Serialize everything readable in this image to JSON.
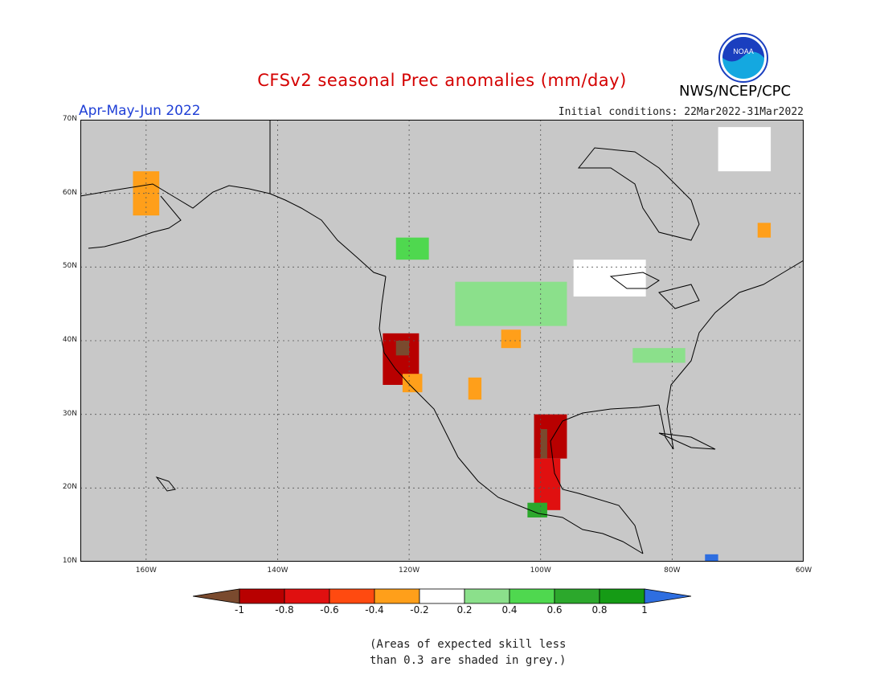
{
  "title": "CFSv2 seasonal Prec anomalies (mm/day)",
  "agency": "NWS/NCEP/CPC",
  "logo_text": "NOAA",
  "season": "Apr-May-Jun 2022",
  "initial_conditions": "Initial conditions: 22Mar2022-31Mar2022",
  "skill_note": [
    "(Areas of expected skill less",
    "than 0.3 are shaded in grey.)"
  ],
  "map": {
    "lon_range": [
      -170,
      -60
    ],
    "lat_range": [
      10,
      70
    ],
    "lat_labels": [
      "10N",
      "20N",
      "30N",
      "40N",
      "50N",
      "60N",
      "70N"
    ],
    "lon_labels": [
      "160W",
      "140W",
      "120W",
      "100W",
      "80W",
      "60W"
    ],
    "background_color": "#c8c8c8",
    "gridlines": "dotted"
  },
  "colorbar": {
    "labels": [
      "-1",
      "-0.8",
      "-0.6",
      "-0.4",
      "-0.2",
      "0.2",
      "0.4",
      "0.6",
      "0.8",
      "1"
    ],
    "colors": [
      "#7a4a2e",
      "#b80000",
      "#e01010",
      "#ff4a10",
      "#ff9f1a",
      "#ffffff",
      "#8be08b",
      "#4fd84f",
      "#2ca82c",
      "#159b15",
      "#2e6ee0"
    ]
  },
  "anomaly_regions": [
    {
      "name": "California coast",
      "lon": [
        -124,
        -118.5
      ],
      "lat": [
        34,
        41
      ],
      "value": -0.9
    },
    {
      "name": "Northern California core",
      "lon": [
        -122,
        -120
      ],
      "lat": [
        38,
        40
      ],
      "value": -1.0
    },
    {
      "name": "Southern California",
      "lon": [
        -121,
        -118
      ],
      "lat": [
        33,
        35.5
      ],
      "value": -0.4
    },
    {
      "name": "Arizona",
      "lon": [
        -111,
        -109
      ],
      "lat": [
        32,
        35
      ],
      "value": -0.4
    },
    {
      "name": "Colorado",
      "lon": [
        -106,
        -103
      ],
      "lat": [
        39,
        41.5
      ],
      "value": -0.4
    },
    {
      "name": "Texas / Gulf coast",
      "lon": [
        -101,
        -96
      ],
      "lat": [
        24,
        30
      ],
      "value": -0.9
    },
    {
      "name": "Texas core",
      "lon": [
        -100,
        -99
      ],
      "lat": [
        24,
        28
      ],
      "value": -1.0
    },
    {
      "name": "Eastern Mexico",
      "lon": [
        -101,
        -97
      ],
      "lat": [
        17,
        24
      ],
      "value": -0.8
    },
    {
      "name": "Southern Mexico",
      "lon": [
        -102,
        -99
      ],
      "lat": [
        16,
        18
      ],
      "value": 0.7
    },
    {
      "name": "Alaska Peninsula",
      "lon": [
        -162,
        -158
      ],
      "lat": [
        57,
        63
      ],
      "value": -0.4
    },
    {
      "name": "Labrador",
      "lon": [
        -67,
        -65
      ],
      "lat": [
        54,
        56
      ],
      "value": -0.4
    },
    {
      "name": "British Columbia",
      "lon": [
        -122,
        -117
      ],
      "lat": [
        51,
        54
      ],
      "value": 0.4
    },
    {
      "name": "Northern Plains",
      "lon": [
        -113,
        -96
      ],
      "lat": [
        42,
        48
      ],
      "value": 0.3
    },
    {
      "name": "Ohio Valley",
      "lon": [
        -86,
        -78
      ],
      "lat": [
        37,
        39
      ],
      "value": 0.3
    },
    {
      "name": "Great Lakes / Quebec",
      "lon": [
        -95,
        -84
      ],
      "lat": [
        46,
        51
      ],
      "value": 0.1
    },
    {
      "name": "Greenland",
      "lon": [
        -73,
        -65
      ],
      "lat": [
        63,
        69
      ],
      "value": 0.1
    },
    {
      "name": "Caribbean",
      "lon": [
        -75,
        -73
      ],
      "lat": [
        10,
        11
      ],
      "value": 1.0
    }
  ]
}
